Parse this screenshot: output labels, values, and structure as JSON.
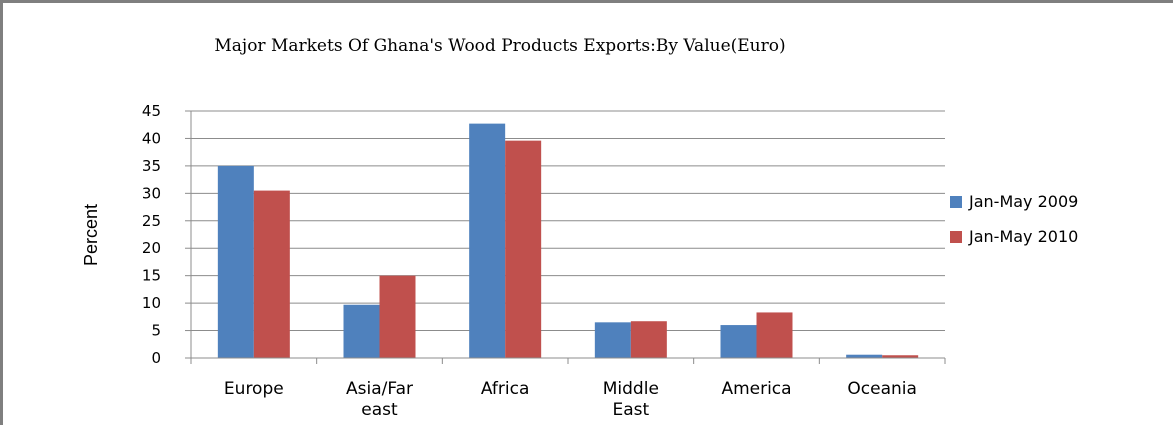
{
  "chart_data": {
    "type": "bar",
    "title": "Major Markets Of Ghana's Wood Products Exports:By Value(Euro)",
    "xlabel": "",
    "ylabel": "Percent",
    "ylim": [
      0,
      45
    ],
    "yticks": [
      0,
      5,
      10,
      15,
      20,
      25,
      30,
      35,
      40,
      45
    ],
    "grid": true,
    "legend_position": "right",
    "categories": [
      [
        "Europe"
      ],
      [
        "Asia/Far",
        "east"
      ],
      [
        "Africa"
      ],
      [
        "Middle",
        "East"
      ],
      [
        "America"
      ],
      [
        "Oceania"
      ]
    ],
    "series": [
      {
        "name": "Jan-May 2009",
        "color": "#4f81bd",
        "values": [
          35,
          9.7,
          42.7,
          6.5,
          6,
          0.6
        ]
      },
      {
        "name": "Jan-May 2010",
        "color": "#c0504d",
        "values": [
          30.5,
          15,
          39.6,
          6.7,
          8.3,
          0.5
        ]
      }
    ]
  }
}
